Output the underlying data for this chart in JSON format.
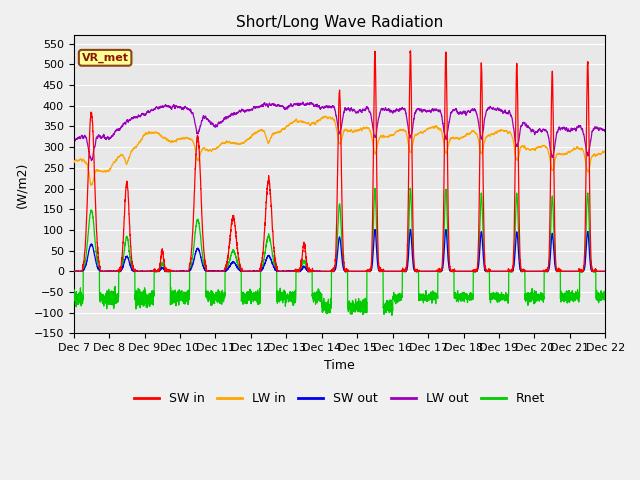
{
  "title": "Short/Long Wave Radiation",
  "xlabel": "Time",
  "ylabel": "(W/m2)",
  "ylim": [
    -150,
    570
  ],
  "yticks": [
    -150,
    -100,
    -50,
    0,
    50,
    100,
    150,
    200,
    250,
    300,
    350,
    400,
    450,
    500,
    550
  ],
  "n_days": 15,
  "points_per_day": 288,
  "annotation_text": "VR_met",
  "annotation_color": "#8B1A00",
  "annotation_bg": "#FFFF99",
  "colors": {
    "SW_in": "#FF0000",
    "LW_in": "#FFA500",
    "SW_out": "#0000EE",
    "LW_out": "#9900BB",
    "Rnet": "#00CC00"
  },
  "background_color": "#E8E8E8",
  "grid_color": "#FFFFFF",
  "title_fontsize": 11,
  "day_peaks_SWin": [
    385,
    215,
    50,
    325,
    130,
    220,
    65,
    435,
    530,
    530,
    530,
    500,
    500,
    480,
    505
  ],
  "day_widths_SWin": [
    0.09,
    0.07,
    0.04,
    0.09,
    0.09,
    0.09,
    0.05,
    0.05,
    0.04,
    0.04,
    0.04,
    0.04,
    0.04,
    0.04,
    0.04
  ],
  "base_LWin": [
    265,
    245,
    330,
    320,
    295,
    325,
    350,
    370,
    340,
    330,
    345,
    325,
    340,
    295,
    290
  ],
  "base_LWout": [
    315,
    320,
    380,
    395,
    350,
    390,
    395,
    395,
    385,
    385,
    385,
    380,
    390,
    335,
    340
  ]
}
